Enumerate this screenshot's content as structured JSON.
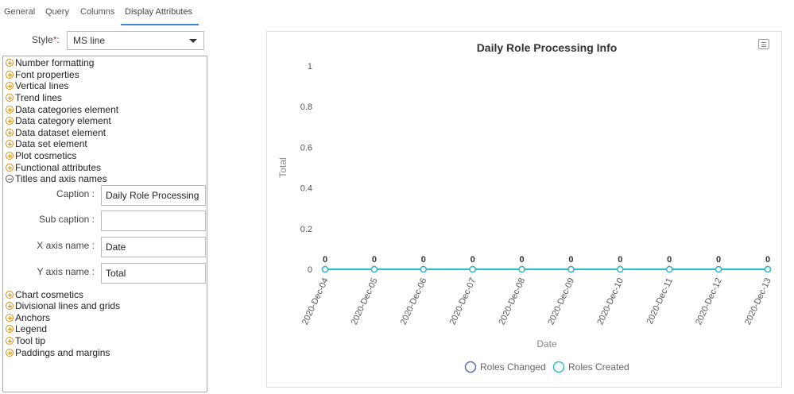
{
  "tabs": [
    {
      "label": "General"
    },
    {
      "label": "Query"
    },
    {
      "label": "Columns"
    },
    {
      "label": "Display Attributes"
    }
  ],
  "style_field": {
    "label": "Style",
    "required_mark": "*",
    "value": "MS line"
  },
  "attribute_groups_top": [
    {
      "label": "Number formatting"
    },
    {
      "label": "Font properties"
    },
    {
      "label": "Vertical lines"
    },
    {
      "label": "Trend lines"
    },
    {
      "label": "Data categories element"
    },
    {
      "label": "Data category element"
    },
    {
      "label": "Data dataset element"
    },
    {
      "label": "Data set element"
    },
    {
      "label": "Plot cosmetics"
    },
    {
      "label": "Functional attributes"
    }
  ],
  "expanded_group": {
    "label": "Titles and axis names",
    "fields": [
      {
        "label": "Caption :",
        "value": "Daily Role Processing Info"
      },
      {
        "label": "Sub caption :",
        "value": ""
      },
      {
        "label": "X axis name :",
        "value": "Date"
      },
      {
        "label": "Y axis name :",
        "value": "Total"
      }
    ]
  },
  "attribute_groups_bottom": [
    {
      "label": "Chart cosmetics"
    },
    {
      "label": "Divisional lines and grids"
    },
    {
      "label": "Anchors"
    },
    {
      "label": "Legend"
    },
    {
      "label": "Tool tip"
    },
    {
      "label": "Paddings and margins"
    }
  ],
  "chart_data": {
    "type": "line",
    "title": "Daily Role Processing Info",
    "xlabel": "Date",
    "ylabel": "Total",
    "ylim": [
      0,
      1
    ],
    "yticks": [
      "0",
      "0.2",
      "0.4",
      "0.6",
      "0.8",
      "1"
    ],
    "categories": [
      "2020-Dec-04",
      "2020-Dec-05",
      "2020-Dec-06",
      "2020-Dec-07",
      "2020-Dec-08",
      "2020-Dec-09",
      "2020-Dec-10",
      "2020-Dec-11",
      "2020-Dec-12",
      "2020-Dec-13"
    ],
    "series": [
      {
        "name": "Roles Changed",
        "color": "#5b6ab8",
        "values": [
          0,
          0,
          0,
          0,
          0,
          0,
          0,
          0,
          0,
          0
        ]
      },
      {
        "name": "Roles Created",
        "color": "#2bbdc9",
        "values": [
          0,
          0,
          0,
          0,
          0,
          0,
          0,
          0,
          0,
          0
        ]
      }
    ],
    "data_labels": [
      "0",
      "0",
      "0",
      "0",
      "0",
      "0",
      "0",
      "0",
      "0",
      "0"
    ],
    "grid": false,
    "legend": "bottom-center"
  }
}
